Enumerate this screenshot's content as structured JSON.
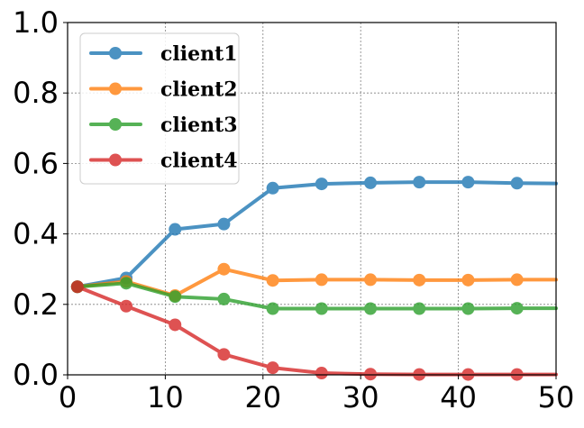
{
  "chart_data": {
    "type": "line",
    "title": "",
    "xlabel": "",
    "ylabel": "",
    "xlim": [
      0,
      50
    ],
    "ylim": [
      0,
      1.0
    ],
    "xticks": [
      "0",
      "10",
      "20",
      "30",
      "40",
      "50"
    ],
    "yticks": [
      "0.0",
      "0.2",
      "0.4",
      "0.6",
      "0.8",
      "1.0"
    ],
    "grid": true,
    "legend_position": "upper-left",
    "x": [
      1,
      6,
      11,
      16,
      21,
      26,
      31,
      36,
      41,
      46,
      50
    ],
    "series": [
      {
        "name": "client1",
        "color": "#1f77b4",
        "values": [
          0.25,
          0.275,
          0.413,
          0.428,
          0.53,
          0.542,
          0.545,
          0.547,
          0.547,
          0.544,
          0.543
        ]
      },
      {
        "name": "client2",
        "color": "#ff7f0e",
        "values": [
          0.25,
          0.265,
          0.225,
          0.3,
          0.268,
          0.27,
          0.27,
          0.269,
          0.269,
          0.27,
          0.27
        ]
      },
      {
        "name": "client3",
        "color": "#2ca02c",
        "values": [
          0.25,
          0.26,
          0.222,
          0.215,
          0.188,
          0.188,
          0.188,
          0.188,
          0.188,
          0.189,
          0.189
        ]
      },
      {
        "name": "client4",
        "color": "#d62728",
        "values": [
          0.25,
          0.195,
          0.142,
          0.058,
          0.02,
          0.005,
          0.002,
          0.001,
          0.001,
          0.001,
          0.001
        ]
      }
    ]
  }
}
